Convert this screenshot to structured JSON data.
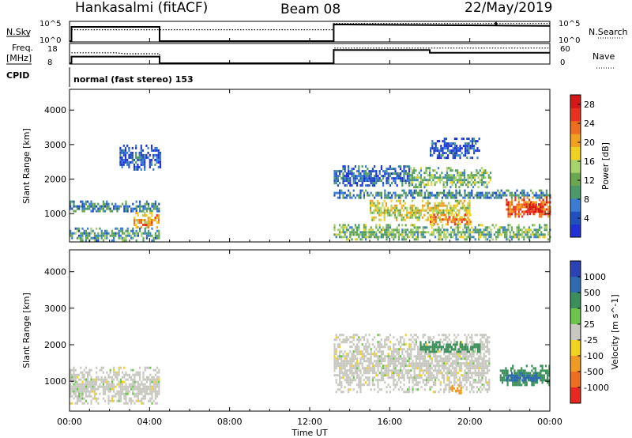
{
  "header": {
    "station": "Hankasalmi (fitACF)",
    "beam": "Beam 08",
    "date": "22/May/2019"
  },
  "top_panels": {
    "nsky_label": "N.Sky",
    "nsearch_label": "N.Search",
    "nsky_ticks": [
      "10^5",
      "10^0"
    ],
    "nsky_right_ticks": [
      "10^5",
      "10^0"
    ],
    "freq_label_1": "Freq.",
    "freq_label_2": "[MHz]",
    "freq_ticks": [
      "18",
      "8"
    ],
    "nave_label": "Nave",
    "nave_ticks": [
      "60",
      "0"
    ],
    "cpid_label": "CPID",
    "mode_text": "normal (fast stereo) 153"
  },
  "chart_data": [
    {
      "type": "line",
      "name": "nsky-nsearch-panel",
      "x_unit": "hours UT",
      "xlim": [
        0,
        24
      ],
      "series": [
        {
          "name": "N.Sky",
          "style": "solid",
          "points": [
            [
              0.0,
              0.0
            ],
            [
              0.1,
              0.0
            ],
            [
              0.1,
              0.75
            ],
            [
              4.5,
              0.75
            ],
            [
              4.5,
              0.0
            ],
            [
              13.2,
              0.0
            ],
            [
              13.2,
              0.88
            ],
            [
              18.0,
              0.84
            ],
            [
              21.3,
              0.82
            ],
            [
              21.3,
              1.0
            ],
            [
              21.35,
              0.82
            ],
            [
              24.0,
              0.8
            ]
          ]
        },
        {
          "name": "N.Search",
          "style": "dotted",
          "points": [
            [
              0.1,
              0.6
            ],
            [
              4.5,
              0.6
            ],
            [
              4.5,
              0.6
            ],
            [
              13.2,
              0.6
            ],
            [
              13.2,
              0.93
            ],
            [
              24.0,
              0.93
            ]
          ]
        }
      ]
    },
    {
      "type": "line",
      "name": "freq-nave-panel",
      "x_unit": "hours UT",
      "xlim": [
        0,
        24
      ],
      "series": [
        {
          "name": "Freq. [MHz]",
          "style": "solid",
          "ylim": [
            8,
            18
          ],
          "points": [
            [
              0.0,
              8.0
            ],
            [
              0.1,
              8.0
            ],
            [
              0.1,
              11.5
            ],
            [
              4.5,
              11.5
            ],
            [
              4.5,
              8.0
            ],
            [
              13.2,
              8.0
            ],
            [
              13.2,
              15.0
            ],
            [
              18.0,
              15.0
            ],
            [
              18.0,
              13.5
            ],
            [
              24.0,
              13.5
            ]
          ]
        },
        {
          "name": "Nave",
          "style": "dotted",
          "ylim": [
            0,
            60
          ],
          "points": [
            [
              0.1,
              33.0
            ],
            [
              2.3,
              33.0
            ],
            [
              2.8,
              30.0
            ],
            [
              4.5,
              30.0
            ],
            [
              4.5,
              0.0
            ],
            [
              13.2,
              0.0
            ],
            [
              13.2,
              48.0
            ],
            [
              24.0,
              48.0
            ]
          ]
        }
      ]
    },
    {
      "type": "heatmap",
      "name": "power",
      "x_unit": "hours UT",
      "xlim": [
        0,
        24
      ],
      "ylabel": "Slant Range [km]",
      "ylim": [
        180,
        4600
      ],
      "yticks": [
        1000,
        2000,
        3000,
        4000
      ],
      "colorbar": {
        "label": "Power [dB]",
        "range": [
          0,
          30
        ],
        "ticks": [
          4,
          8,
          12,
          16,
          20,
          24,
          28
        ],
        "colors": [
          "#2030d8",
          "#2050c0",
          "#3a7bd5",
          "#4c9a6a",
          "#6aa84f",
          "#a8d26a",
          "#f0d020",
          "#f2a020",
          "#ef6d1f",
          "#e8321e",
          "#d71818"
        ]
      },
      "regions": [
        {
          "t": [
            0.0,
            4.5
          ],
          "r": [
            1050,
            1380
          ],
          "dB": 8
        },
        {
          "t": [
            3.2,
            4.5
          ],
          "r": [
            600,
            1050
          ],
          "dB": 20
        },
        {
          "t": [
            0.0,
            4.5
          ],
          "r": [
            250,
            600
          ],
          "dB": 10
        },
        {
          "t": [
            2.5,
            4.5
          ],
          "r": [
            2300,
            3000
          ],
          "dB": 4
        },
        {
          "t": [
            13.2,
            17.0
          ],
          "r": [
            1800,
            2400
          ],
          "dB": 6
        },
        {
          "t": [
            17.0,
            21.0
          ],
          "r": [
            1750,
            2350
          ],
          "dB": 12
        },
        {
          "t": [
            13.2,
            24.0
          ],
          "r": [
            1450,
            1700
          ],
          "dB": 8
        },
        {
          "t": [
            15.0,
            20.0
          ],
          "r": [
            800,
            1400
          ],
          "dB": 16
        },
        {
          "t": [
            18.0,
            20.0
          ],
          "r": [
            700,
            1000
          ],
          "dB": 22
        },
        {
          "t": [
            21.8,
            24.0
          ],
          "r": [
            900,
            1500
          ],
          "dB": 24
        },
        {
          "t": [
            22.8,
            23.6
          ],
          "r": [
            1000,
            1300
          ],
          "dB": 28
        },
        {
          "t": [
            13.2,
            24.0
          ],
          "r": [
            250,
            700
          ],
          "dB": 12
        },
        {
          "t": [
            18.0,
            20.5
          ],
          "r": [
            2600,
            3200
          ],
          "dB": 4
        }
      ]
    },
    {
      "type": "heatmap",
      "name": "velocity",
      "x_unit": "hours UT",
      "xlim": [
        0,
        24
      ],
      "xlabel": "Time UT",
      "xticks": [
        "00:00",
        "04:00",
        "08:00",
        "12:00",
        "16:00",
        "20:00",
        "00:00"
      ],
      "ylabel": "Slant Range [km]",
      "ylim": [
        180,
        4600
      ],
      "yticks": [
        1000,
        2000,
        3000,
        4000
      ],
      "colorbar": {
        "label": "Velocity [m s^-1]",
        "ticks": [
          "1000",
          "500",
          "100",
          "25",
          "-25",
          "-100",
          "-500",
          "-1000"
        ],
        "colors": [
          "#2a43b8",
          "#2e6bb0",
          "#3b8f5a",
          "#6cc44a",
          "#c8c8c0",
          "#f1d21c",
          "#f19a22",
          "#ef6d1f",
          "#e8281e"
        ]
      },
      "regions": [
        {
          "t": [
            0.0,
            4.5
          ],
          "r": [
            400,
            1400
          ],
          "v": 0
        },
        {
          "t": [
            13.2,
            21.0
          ],
          "r": [
            700,
            2300
          ],
          "v": 0
        },
        {
          "t": [
            17.5,
            20.5
          ],
          "r": [
            1800,
            2100
          ],
          "v": 150
        },
        {
          "t": [
            19.0,
            19.6
          ],
          "r": [
            700,
            900
          ],
          "v": -500
        },
        {
          "t": [
            21.5,
            24.0
          ],
          "r": [
            900,
            1450
          ],
          "v": 150
        },
        {
          "t": [
            21.8,
            23.5
          ],
          "r": [
            1000,
            1250
          ],
          "v": 500
        }
      ]
    }
  ],
  "time_axis": {
    "label": "Time UT",
    "ticks": [
      "00:00",
      "04:00",
      "08:00",
      "12:00",
      "16:00",
      "20:00",
      "00:00"
    ]
  }
}
